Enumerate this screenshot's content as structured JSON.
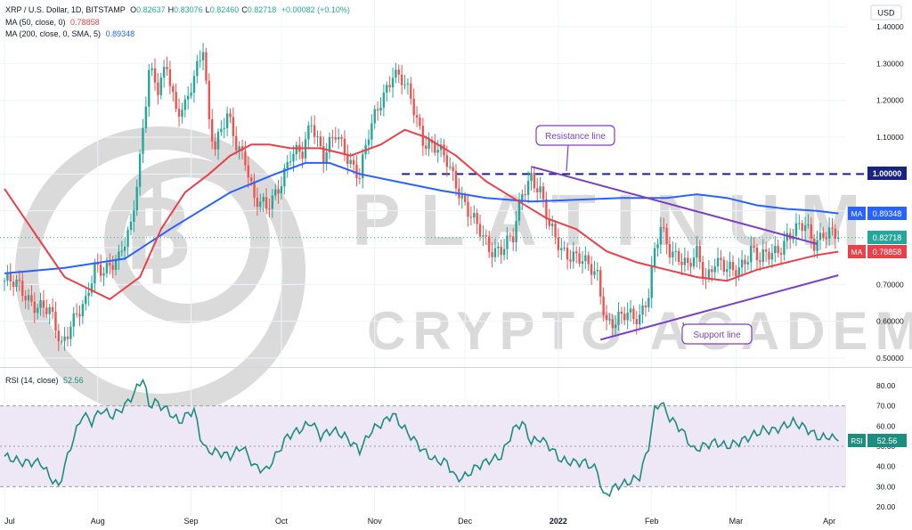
{
  "header": {
    "symbol_line": "XRP / U.S. Dollar, 1D, BITSTAMP",
    "ohlc": [
      {
        "k": "O",
        "v": "0.82637"
      },
      {
        "k": "H",
        "v": "0.83076"
      },
      {
        "k": "L",
        "v": "0.82460"
      },
      {
        "k": "C",
        "v": "0.82718"
      }
    ],
    "change": "+0.00082 (+0.10%)",
    "ma50_label": "MA (50, close, 0)",
    "ma50_value": "0.78858",
    "ma200_label": "MA (200, close, 0, SMA, 5)",
    "ma200_value": "0.89348",
    "rsi_label": "RSI (14, close)",
    "rsi_value": "52.56"
  },
  "currency": "USD",
  "watermark": {
    "line1": "PLATINUM",
    "line2": "CRYPTO ACADEMY"
  },
  "annotations": {
    "resistance": "Resistance line",
    "support": "Support line"
  },
  "badges": {
    "ma200": {
      "tag": "MA",
      "value": "0.89348"
    },
    "price": {
      "value": "0.82718"
    },
    "ma50": {
      "tag": "MA",
      "value": "0.78858"
    },
    "level": {
      "value": "1.00000"
    },
    "rsi": {
      "tag": "RSI",
      "value": "52.56"
    }
  },
  "colors": {
    "up": "#26a69a",
    "down": "#ef5350",
    "ma50": "#e8414a",
    "ma200": "#2962ff",
    "rsi": "#1e8c7e",
    "trend": "#7b3fc4",
    "level": "#1a237e",
    "rsi_band": "#ede7f6"
  },
  "chart_data": [
    {
      "type": "candlestick",
      "title": "XRP / U.S. Dollar, 1D, BITSTAMP",
      "y_axis_ticks": [
        "1.40000",
        "1.30000",
        "1.20000",
        "1.10000",
        "1.00000",
        "0.90000",
        "0.80000",
        "0.70000",
        "0.60000",
        "0.50000"
      ],
      "ylim": [
        0.48,
        1.43
      ],
      "x_axis_ticks": [
        {
          "label": "Jul",
          "day": 0
        },
        {
          "label": "Aug",
          "day": 31
        },
        {
          "label": "Sep",
          "day": 62
        },
        {
          "label": "Oct",
          "day": 92
        },
        {
          "label": "Nov",
          "day": 123
        },
        {
          "label": "Dec",
          "day": 153
        },
        {
          "label": "2022",
          "day": 184
        },
        {
          "label": "Feb",
          "day": 215
        },
        {
          "label": "Mar",
          "day": 243
        },
        {
          "label": "Apr",
          "day": 274
        }
      ],
      "close_path": [
        [
          0,
          0.71
        ],
        [
          5,
          0.69
        ],
        [
          10,
          0.65
        ],
        [
          15,
          0.62
        ],
        [
          19,
          0.54
        ],
        [
          22,
          0.6
        ],
        [
          27,
          0.64
        ],
        [
          30,
          0.75
        ],
        [
          34,
          0.75
        ],
        [
          38,
          0.76
        ],
        [
          42,
          0.86
        ],
        [
          45,
          1.05
        ],
        [
          48,
          1.28
        ],
        [
          51,
          1.22
        ],
        [
          54,
          1.3
        ],
        [
          57,
          1.18
        ],
        [
          60,
          1.18
        ],
        [
          63,
          1.25
        ],
        [
          66,
          1.35
        ],
        [
          68,
          1.15
        ],
        [
          70,
          1.08
        ],
        [
          74,
          1.15
        ],
        [
          77,
          1.08
        ],
        [
          80,
          1.05
        ],
        [
          83,
          0.93
        ],
        [
          87,
          0.9
        ],
        [
          90,
          0.95
        ],
        [
          95,
          1.05
        ],
        [
          99,
          1.05
        ],
        [
          102,
          1.15
        ],
        [
          106,
          1.05
        ],
        [
          110,
          1.1
        ],
        [
          114,
          1.05
        ],
        [
          118,
          1.0
        ],
        [
          121,
          1.1
        ],
        [
          125,
          1.2
        ],
        [
          129,
          1.28
        ],
        [
          132,
          1.25
        ],
        [
          135,
          1.2
        ],
        [
          139,
          1.1
        ],
        [
          143,
          1.07
        ],
        [
          147,
          1.03
        ],
        [
          150,
          0.98
        ],
        [
          154,
          0.9
        ],
        [
          157,
          0.85
        ],
        [
          161,
          0.8
        ],
        [
          165,
          0.8
        ],
        [
          169,
          0.82
        ],
        [
          172,
          0.95
        ],
        [
          175,
          1.0
        ],
        [
          178,
          0.95
        ],
        [
          181,
          0.85
        ],
        [
          185,
          0.8
        ],
        [
          189,
          0.78
        ],
        [
          193,
          0.75
        ],
        [
          197,
          0.73
        ],
        [
          200,
          0.6
        ],
        [
          203,
          0.59
        ],
        [
          207,
          0.62
        ],
        [
          211,
          0.62
        ],
        [
          214,
          0.67
        ],
        [
          216,
          0.78
        ],
        [
          218,
          0.85
        ],
        [
          221,
          0.8
        ],
        [
          224,
          0.78
        ],
        [
          227,
          0.74
        ],
        [
          230,
          0.78
        ],
        [
          233,
          0.72
        ],
        [
          236,
          0.77
        ],
        [
          239,
          0.74
        ],
        [
          242,
          0.73
        ],
        [
          245,
          0.76
        ],
        [
          248,
          0.8
        ],
        [
          251,
          0.76
        ],
        [
          254,
          0.78
        ],
        [
          257,
          0.8
        ],
        [
          260,
          0.83
        ],
        [
          263,
          0.84
        ],
        [
          266,
          0.86
        ],
        [
          269,
          0.82
        ],
        [
          272,
          0.84
        ],
        [
          275,
          0.83
        ],
        [
          277,
          0.827
        ]
      ],
      "series": [
        {
          "name": "MA (50, close, 0)",
          "value": 0.78858,
          "values": [
            [
              0,
              0.96
            ],
            [
              10,
              0.84
            ],
            [
              20,
              0.72
            ],
            [
              30,
              0.68
            ],
            [
              35,
              0.66
            ],
            [
              45,
              0.72
            ],
            [
              52,
              0.85
            ],
            [
              60,
              0.95
            ],
            [
              68,
              1.0
            ],
            [
              75,
              1.05
            ],
            [
              82,
              1.08
            ],
            [
              88,
              1.08
            ],
            [
              95,
              1.07
            ],
            [
              105,
              1.07
            ],
            [
              115,
              1.05
            ],
            [
              125,
              1.08
            ],
            [
              133,
              1.12
            ],
            [
              140,
              1.1
            ],
            [
              150,
              1.05
            ],
            [
              160,
              0.98
            ],
            [
              170,
              0.93
            ],
            [
              180,
              0.88
            ],
            [
              190,
              0.85
            ],
            [
              200,
              0.79
            ],
            [
              210,
              0.76
            ],
            [
              220,
              0.74
            ],
            [
              230,
              0.72
            ],
            [
              240,
              0.71
            ],
            [
              250,
              0.74
            ],
            [
              260,
              0.76
            ],
            [
              270,
              0.78
            ],
            [
              277,
              0.789
            ]
          ]
        },
        {
          "name": "MA (200, close, 0, SMA, 5)",
          "value": 0.89348,
          "values": [
            [
              0,
              0.73
            ],
            [
              20,
              0.745
            ],
            [
              40,
              0.77
            ],
            [
              55,
              0.85
            ],
            [
              65,
              0.9
            ],
            [
              75,
              0.95
            ],
            [
              90,
              1.0
            ],
            [
              100,
              1.03
            ],
            [
              108,
              1.03
            ],
            [
              118,
              1.0
            ],
            [
              130,
              0.98
            ],
            [
              145,
              0.955
            ],
            [
              160,
              0.935
            ],
            [
              175,
              0.925
            ],
            [
              190,
              0.93
            ],
            [
              205,
              0.935
            ],
            [
              220,
              0.935
            ],
            [
              230,
              0.945
            ],
            [
              240,
              0.935
            ],
            [
              250,
              0.915
            ],
            [
              260,
              0.905
            ],
            [
              270,
              0.9
            ],
            [
              277,
              0.893
            ]
          ]
        }
      ],
      "annotations": [
        {
          "text": "Resistance line",
          "from": [
            175,
            1.02
          ],
          "to": [
            270,
            0.81
          ]
        },
        {
          "text": "Support line",
          "from": [
            198,
            0.55
          ],
          "to": [
            277,
            0.725
          ]
        },
        {
          "label": "1.00000",
          "level": 1.0,
          "style": "dashed",
          "from_day": 132
        }
      ]
    },
    {
      "type": "line",
      "title": "RSI (14, close)",
      "value": 52.56,
      "y_axis_ticks": [
        "80.00",
        "70.00",
        "60.00",
        "50.00",
        "40.00",
        "30.00",
        "20.00"
      ],
      "ylim": [
        18,
        84
      ],
      "bands": [
        30,
        70
      ],
      "midline": 50,
      "values": [
        [
          0,
          45
        ],
        [
          6,
          42
        ],
        [
          12,
          42
        ],
        [
          15,
          35
        ],
        [
          18,
          30
        ],
        [
          22,
          50
        ],
        [
          26,
          66
        ],
        [
          29,
          62
        ],
        [
          32,
          68
        ],
        [
          36,
          65
        ],
        [
          40,
          70
        ],
        [
          43,
          76
        ],
        [
          46,
          84
        ],
        [
          48,
          70
        ],
        [
          50,
          72
        ],
        [
          54,
          68
        ],
        [
          58,
          62
        ],
        [
          61,
          66
        ],
        [
          63,
          68
        ],
        [
          65,
          55
        ],
        [
          67,
          48
        ],
        [
          71,
          47
        ],
        [
          75,
          45
        ],
        [
          79,
          50
        ],
        [
          83,
          40
        ],
        [
          87,
          38
        ],
        [
          90,
          45
        ],
        [
          94,
          55
        ],
        [
          98,
          58
        ],
        [
          102,
          62
        ],
        [
          105,
          55
        ],
        [
          109,
          58
        ],
        [
          113,
          55
        ],
        [
          118,
          48
        ],
        [
          122,
          58
        ],
        [
          126,
          62
        ],
        [
          129,
          66
        ],
        [
          132,
          60
        ],
        [
          135,
          55
        ],
        [
          139,
          48
        ],
        [
          143,
          43
        ],
        [
          147,
          42
        ],
        [
          150,
          34
        ],
        [
          153,
          35
        ],
        [
          157,
          40
        ],
        [
          161,
          43
        ],
        [
          165,
          45
        ],
        [
          169,
          58
        ],
        [
          172,
          62
        ],
        [
          175,
          52
        ],
        [
          178,
          54
        ],
        [
          181,
          50
        ],
        [
          185,
          43
        ],
        [
          189,
          42
        ],
        [
          193,
          42
        ],
        [
          197,
          38
        ],
        [
          199,
          25
        ],
        [
          203,
          30
        ],
        [
          207,
          32
        ],
        [
          211,
          35
        ],
        [
          214,
          50
        ],
        [
          216,
          68
        ],
        [
          218,
          72
        ],
        [
          221,
          64
        ],
        [
          225,
          58
        ],
        [
          229,
          48
        ],
        [
          232,
          50
        ],
        [
          236,
          52
        ],
        [
          240,
          50
        ],
        [
          244,
          52
        ],
        [
          248,
          55
        ],
        [
          252,
          58
        ],
        [
          256,
          58
        ],
        [
          259,
          60
        ],
        [
          262,
          62
        ],
        [
          265,
          60
        ],
        [
          268,
          57
        ],
        [
          271,
          54
        ],
        [
          274,
          55
        ],
        [
          277,
          52.56
        ]
      ]
    }
  ]
}
